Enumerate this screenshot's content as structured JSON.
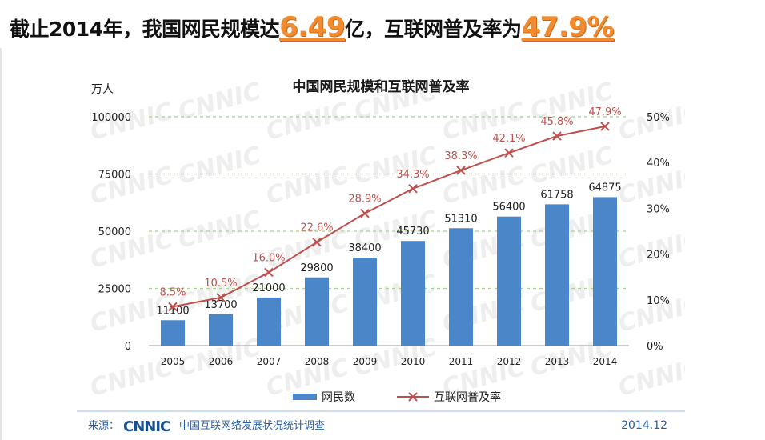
{
  "headline": {
    "prefix": "截止2014年，我国网民规模达",
    "value1": "6.49",
    "mid": "亿，互联网普及率为",
    "value2": "47.9%"
  },
  "chart_data": {
    "type": "bar+line",
    "title": "中国网民规模和互联网普及率",
    "left_unit": "万人",
    "categories": [
      "2005",
      "2006",
      "2007",
      "2008",
      "2009",
      "2010",
      "2011",
      "2012",
      "2013",
      "2014"
    ],
    "series": [
      {
        "name": "网民数",
        "kind": "bar",
        "axis": "left",
        "values": [
          11100,
          13700,
          21000,
          29800,
          38400,
          45730,
          51310,
          56400,
          61758,
          64875
        ],
        "labels": [
          "11100",
          "13700",
          "21000",
          "29800",
          "38400",
          "45730",
          "51310",
          "56400",
          "61758",
          "64875"
        ]
      },
      {
        "name": "互联网普及率",
        "kind": "line",
        "axis": "right",
        "values": [
          8.5,
          10.5,
          16.0,
          22.6,
          28.9,
          34.3,
          38.3,
          42.1,
          45.8,
          47.9
        ],
        "labels": [
          "8.5%",
          "10.5%",
          "16.0%",
          "22.6%",
          "28.9%",
          "34.3%",
          "38.3%",
          "42.1%",
          "45.8%",
          "47.9%"
        ]
      }
    ],
    "left_axis": {
      "ylim": [
        0,
        100000
      ],
      "ticks": [
        "0",
        "25000",
        "50000",
        "75000",
        "100000"
      ]
    },
    "right_axis": {
      "ylim": [
        0,
        50
      ],
      "ticks": [
        "0%",
        "10%",
        "20%",
        "30%",
        "40%",
        "50%"
      ]
    },
    "grid": "dashed-horizontal",
    "legend_position": "bottom",
    "colors": {
      "bar": "#4a86c8",
      "line": "#c0504d",
      "grid": "#a8d38a",
      "label_line": "#c0504d"
    },
    "source_label": "来源：",
    "source_org": "中国互联网络发展状况统计调查",
    "logo_text": "CNNIC",
    "date": "2014.12"
  }
}
